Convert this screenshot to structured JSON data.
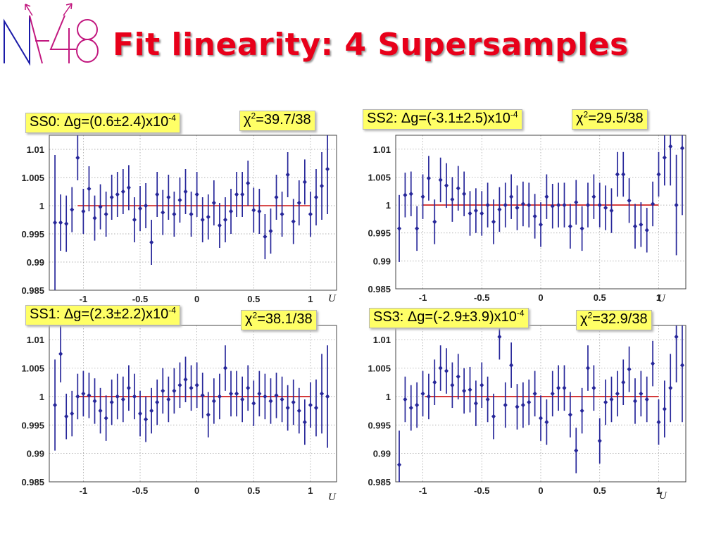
{
  "slide": {
    "title": "Fit linearity: 4 Supersamples",
    "logo_text": "NA48",
    "colors": {
      "title": "#e8001a",
      "points": "#27279a",
      "fit": "#cc1010",
      "label_bg": "#ffff66"
    }
  },
  "chart_data": [
    {
      "type": "scatter",
      "id": "SS0",
      "box_label": {
        "pre": "SS0: ",
        "delta": "Δ",
        "body": "g=(0.6±2.4)x10",
        "exp": "-4"
      },
      "chi_label": {
        "chi": "χ",
        "exp": "2",
        "body": "=39.7/38"
      },
      "xlabel": "U",
      "xlim": [
        -1.3,
        1.23
      ],
      "ylim": [
        0.985,
        1.0125
      ],
      "xticks": [
        -1,
        -0.5,
        0,
        0.5,
        1
      ],
      "xtick_labels": [
        "-1",
        "-0.5",
        "0",
        "0.5",
        "1"
      ],
      "yticks": [
        0.985,
        0.99,
        0.995,
        1,
        1.005,
        1.01
      ],
      "ytick_labels": [
        "0.985",
        "0.99",
        "0.995",
        "1",
        "1.005",
        "1.01"
      ],
      "fit": {
        "x": [
          -1.05,
          1.0
        ],
        "y": 1.0
      },
      "grid": true,
      "series": [
        {
          "x": [
            -1.25,
            -1.2,
            -1.15,
            -1.1,
            -1.05,
            -1.0,
            -0.95,
            -0.9,
            -0.85,
            -0.8,
            -0.75,
            -0.7,
            -0.65,
            -0.6,
            -0.55,
            -0.5,
            -0.45,
            -0.4,
            -0.35,
            -0.3,
            -0.25,
            -0.2,
            -0.15,
            -0.1,
            -0.05,
            0.0,
            0.05,
            0.1,
            0.15,
            0.2,
            0.25,
            0.3,
            0.35,
            0.4,
            0.45,
            0.5,
            0.55,
            0.6,
            0.65,
            0.7,
            0.75,
            0.8,
            0.85,
            0.9,
            0.95,
            1.0,
            1.05,
            1.1,
            1.15
          ],
          "y": [
            0.997,
            0.997,
            0.9968,
            0.9993,
            1.0085,
            0.999,
            1.003,
            0.9978,
            0.9998,
            0.9985,
            1.0015,
            1.002,
            1.0025,
            1.0032,
            0.9975,
            0.9995,
            1.0,
            0.9935,
            1.002,
            0.9988,
            1.0015,
            0.9985,
            1.001,
            1.0025,
            0.9985,
            1.002,
            0.9975,
            0.998,
            1.0005,
            0.9965,
            0.9975,
            0.999,
            1.002,
            1.002,
            1.004,
            0.9992,
            0.999,
            0.9945,
            0.9955,
            1.0015,
            0.9985,
            1.0055,
            0.9972,
            1.0005,
            1.0042,
            0.9985,
            1.0015,
            1.0035,
            1.0065
          ],
          "err": [
            0.012,
            0.005,
            0.005,
            0.004,
            0.004,
            0.004,
            0.004,
            0.004,
            0.004,
            0.004,
            0.004,
            0.004,
            0.004,
            0.004,
            0.004,
            0.004,
            0.004,
            0.004,
            0.004,
            0.004,
            0.004,
            0.004,
            0.004,
            0.004,
            0.004,
            0.004,
            0.004,
            0.004,
            0.004,
            0.004,
            0.004,
            0.004,
            0.004,
            0.004,
            0.004,
            0.004,
            0.004,
            0.004,
            0.004,
            0.004,
            0.004,
            0.004,
            0.004,
            0.004,
            0.004,
            0.004,
            0.005,
            0.006,
            0.008
          ]
        }
      ]
    },
    {
      "type": "scatter",
      "id": "SS2",
      "box_label": {
        "pre": "SS2: ",
        "delta": "Δ",
        "body": "g=(-3.1±2.5)x10",
        "exp": "-4"
      },
      "chi_label": {
        "chi": "χ",
        "exp": "2",
        "body": "=29.5/38"
      },
      "xlabel": "U",
      "xlim": [
        -1.23,
        1.23
      ],
      "ylim": [
        0.985,
        1.0125
      ],
      "xticks": [
        -1,
        -0.5,
        0,
        0.5,
        1
      ],
      "xtick_labels": [
        "-1",
        "-0.5",
        "0",
        "0.5",
        "1"
      ],
      "yticks": [
        0.985,
        0.99,
        0.995,
        1,
        1.005,
        1.01
      ],
      "ytick_labels": [
        "0.985",
        "0.99",
        "0.995",
        "1",
        "1.005",
        "1.01"
      ],
      "fit": {
        "x": [
          -1.0,
          1.0
        ],
        "y": 1.0
      },
      "grid": true,
      "series": [
        {
          "x": [
            -1.2,
            -1.15,
            -1.1,
            -1.05,
            -1.0,
            -0.95,
            -0.9,
            -0.85,
            -0.8,
            -0.75,
            -0.7,
            -0.65,
            -0.6,
            -0.55,
            -0.5,
            -0.45,
            -0.4,
            -0.35,
            -0.3,
            -0.25,
            -0.2,
            -0.15,
            -0.1,
            -0.05,
            0.0,
            0.05,
            0.1,
            0.15,
            0.2,
            0.25,
            0.3,
            0.35,
            0.4,
            0.45,
            0.5,
            0.55,
            0.6,
            0.65,
            0.7,
            0.75,
            0.8,
            0.85,
            0.9,
            0.95,
            1.0,
            1.05,
            1.1,
            1.15,
            1.2
          ],
          "y": [
            0.9958,
            1.0018,
            1.002,
            0.9958,
            1.0015,
            1.0048,
            0.997,
            1.0045,
            1.0035,
            1.001,
            1.003,
            1.002,
            0.9985,
            0.999,
            0.9985,
            1.0,
            0.997,
            0.9992,
            1.0,
            1.0015,
            0.9995,
            1.0002,
            1.0,
            0.998,
            0.9965,
            1.0015,
            0.9998,
            1.0,
            1.0,
            0.9962,
            1.0005,
            0.9958,
            1.0,
            1.0015,
            1.0,
            0.9995,
            0.999,
            1.0055,
            1.0055,
            1.0008,
            0.9962,
            0.9965,
            0.9955,
            1.0002,
            1.0055,
            1.0085,
            1.0105,
            1.0,
            1.0102
          ],
          "err": [
            0.006,
            0.004,
            0.004,
            0.004,
            0.004,
            0.004,
            0.004,
            0.004,
            0.004,
            0.004,
            0.004,
            0.004,
            0.004,
            0.004,
            0.004,
            0.004,
            0.004,
            0.004,
            0.004,
            0.004,
            0.004,
            0.004,
            0.004,
            0.004,
            0.004,
            0.004,
            0.004,
            0.004,
            0.004,
            0.004,
            0.004,
            0.004,
            0.004,
            0.004,
            0.004,
            0.004,
            0.004,
            0.004,
            0.004,
            0.004,
            0.004,
            0.004,
            0.004,
            0.004,
            0.004,
            0.005,
            0.007,
            0.009,
            0.012
          ]
        }
      ]
    },
    {
      "type": "scatter",
      "id": "SS1",
      "box_label": {
        "pre": "SS1: ",
        "delta": "Δ",
        "body": "g=(2.3±2.2)x10",
        "exp": "-4"
      },
      "chi_label": {
        "chi": "χ",
        "exp": "2",
        "body": "=38.1/38"
      },
      "xlabel": "U",
      "xlim": [
        -1.3,
        1.23
      ],
      "ylim": [
        0.985,
        1.0125
      ],
      "xticks": [
        -1,
        -0.5,
        0,
        0.5,
        1
      ],
      "xtick_labels": [
        "-1",
        "-0.5",
        "0",
        "0.5",
        "1"
      ],
      "yticks": [
        0.985,
        0.99,
        0.995,
        1,
        1.005,
        1.01
      ],
      "ytick_labels": [
        "0.985",
        "0.99",
        "0.995",
        "1",
        "1.005",
        "1.01"
      ],
      "fit": {
        "x": [
          -1.05,
          1.0
        ],
        "y": 1.0
      },
      "grid": true,
      "series": [
        {
          "x": [
            -1.25,
            -1.2,
            -1.15,
            -1.1,
            -1.05,
            -1.0,
            -0.95,
            -0.9,
            -0.85,
            -0.8,
            -0.75,
            -0.7,
            -0.65,
            -0.6,
            -0.55,
            -0.5,
            -0.45,
            -0.4,
            -0.35,
            -0.3,
            -0.25,
            -0.2,
            -0.15,
            -0.1,
            -0.05,
            0.0,
            0.05,
            0.1,
            0.15,
            0.2,
            0.25,
            0.3,
            0.35,
            0.4,
            0.45,
            0.5,
            0.55,
            0.6,
            0.65,
            0.7,
            0.75,
            0.8,
            0.85,
            0.9,
            0.95,
            1.0,
            1.05,
            1.1,
            1.15
          ],
          "y": [
            0.9985,
            1.0075,
            0.9965,
            0.997,
            1.0,
            1.0005,
            1.0002,
            0.9992,
            0.9975,
            0.9962,
            0.999,
            1.0,
            0.9995,
            1.0015,
            1.0,
            0.997,
            0.996,
            0.9975,
            0.999,
            1.001,
            0.9995,
            1.001,
            1.002,
            1.003,
            1.0015,
            1.002,
            1.0002,
            0.9968,
            0.9992,
            1.0,
            1.005,
            1.0005,
            1.0005,
            0.9995,
            1.0015,
            0.9988,
            1.0005,
            1.0,
            0.9992,
            1.0002,
            0.9995,
            0.998,
            0.999,
            0.9975,
            0.9955,
            0.9985,
            0.998,
            1.0005,
            1.0
          ],
          "err": [
            0.008,
            0.005,
            0.004,
            0.004,
            0.004,
            0.004,
            0.004,
            0.004,
            0.004,
            0.004,
            0.004,
            0.004,
            0.004,
            0.004,
            0.004,
            0.004,
            0.004,
            0.004,
            0.004,
            0.004,
            0.004,
            0.004,
            0.004,
            0.004,
            0.004,
            0.004,
            0.004,
            0.004,
            0.004,
            0.004,
            0.004,
            0.004,
            0.004,
            0.004,
            0.004,
            0.004,
            0.004,
            0.004,
            0.004,
            0.004,
            0.004,
            0.004,
            0.004,
            0.004,
            0.004,
            0.004,
            0.005,
            0.007,
            0.009
          ]
        }
      ]
    },
    {
      "type": "scatter",
      "id": "SS3",
      "box_label": {
        "pre": "SS3: ",
        "delta": "Δ",
        "body": "g=(-2.9±3.9)x10",
        "exp": "-4"
      },
      "chi_label": {
        "chi": "χ",
        "exp": "2",
        "body": "=32.9/38"
      },
      "xlabel": "U",
      "xlim": [
        -1.23,
        1.23
      ],
      "ylim": [
        0.985,
        1.0125
      ],
      "xticks": [
        -1,
        -0.5,
        0,
        0.5,
        1
      ],
      "xtick_labels": [
        "-1",
        "-0.5",
        "0",
        "0.5",
        "1"
      ],
      "yticks": [
        0.985,
        0.99,
        0.995,
        1,
        1.005,
        1.01
      ],
      "ytick_labels": [
        "0.985",
        "0.99",
        "0.995",
        "1",
        "1.005",
        "1.01"
      ],
      "fit": {
        "x": [
          -0.98,
          1.0
        ],
        "y": 1.0
      },
      "grid": true,
      "series": [
        {
          "x": [
            -1.2,
            -1.15,
            -1.1,
            -1.05,
            -1.0,
            -0.95,
            -0.9,
            -0.85,
            -0.8,
            -0.75,
            -0.7,
            -0.65,
            -0.6,
            -0.55,
            -0.5,
            -0.45,
            -0.4,
            -0.35,
            -0.3,
            -0.25,
            -0.2,
            -0.15,
            -0.1,
            -0.05,
            0.0,
            0.05,
            0.1,
            0.15,
            0.2,
            0.25,
            0.3,
            0.35,
            0.4,
            0.45,
            0.5,
            0.55,
            0.6,
            0.65,
            0.7,
            0.75,
            0.8,
            0.85,
            0.9,
            0.95,
            1.0,
            1.05,
            1.1,
            1.15,
            1.2
          ],
          "y": [
            0.988,
            0.9995,
            0.998,
            0.9985,
            1.0005,
            1.0,
            1.0025,
            1.005,
            1.0045,
            1.002,
            1.0035,
            1.001,
            1.0012,
            0.9988,
            1.002,
            0.9995,
            0.9965,
            1.0105,
            0.9985,
            1.0055,
            0.9982,
            0.9985,
            0.999,
            1.0005,
            0.9962,
            0.9955,
            1.0005,
            1.0015,
            1.0015,
            0.9968,
            0.9905,
            0.9975,
            1.005,
            1.0015,
            0.9922,
            0.999,
            0.9995,
            1.0005,
            1.0025,
            1.0048,
            0.9992,
            1.0005,
            0.9995,
            1.0058,
            0.9955,
            0.9978,
            1.0015,
            1.0105,
            1.0055
          ],
          "err": [
            0.006,
            0.004,
            0.004,
            0.004,
            0.004,
            0.004,
            0.004,
            0.004,
            0.004,
            0.004,
            0.004,
            0.004,
            0.004,
            0.004,
            0.004,
            0.004,
            0.004,
            0.004,
            0.004,
            0.004,
            0.004,
            0.004,
            0.004,
            0.004,
            0.004,
            0.004,
            0.004,
            0.004,
            0.004,
            0.004,
            0.004,
            0.004,
            0.004,
            0.004,
            0.004,
            0.004,
            0.004,
            0.004,
            0.004,
            0.004,
            0.004,
            0.004,
            0.004,
            0.004,
            0.004,
            0.005,
            0.006,
            0.008,
            0.01
          ]
        }
      ]
    }
  ]
}
